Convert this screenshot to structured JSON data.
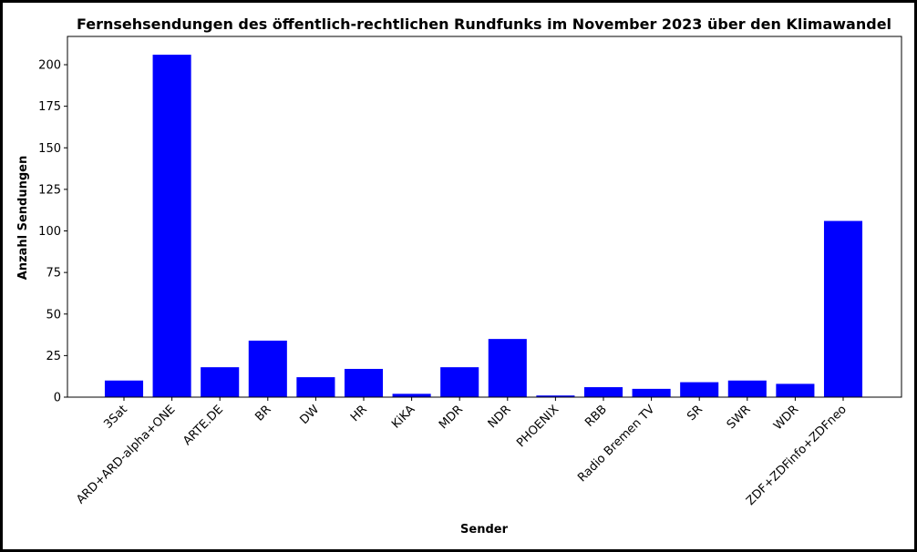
{
  "chart_data": {
    "type": "bar",
    "title": "Fernsehsendungen des öffentlich-rechtlichen Rundfunks im November 2023 über den Klimawandel",
    "xlabel": "Sender",
    "ylabel": "Anzahl Sendungen",
    "categories": [
      "3Sat",
      "ARD+ARD-alpha+ONE",
      "ARTE.DE",
      "BR",
      "DW",
      "HR",
      "KiKA",
      "MDR",
      "NDR",
      "PHOENIX",
      "RBB",
      "Radio Bremen TV",
      "SR",
      "SWR",
      "WDR",
      "ZDF+ZDFinfo+ZDFneo"
    ],
    "values": [
      10,
      206,
      18,
      34,
      12,
      17,
      2,
      18,
      35,
      1,
      6,
      5,
      9,
      10,
      8,
      106
    ],
    "ylim": [
      0,
      217
    ],
    "yticks": [
      0,
      25,
      50,
      75,
      100,
      125,
      150,
      175,
      200
    ],
    "bar_color": "#0000ff",
    "grid": false
  }
}
